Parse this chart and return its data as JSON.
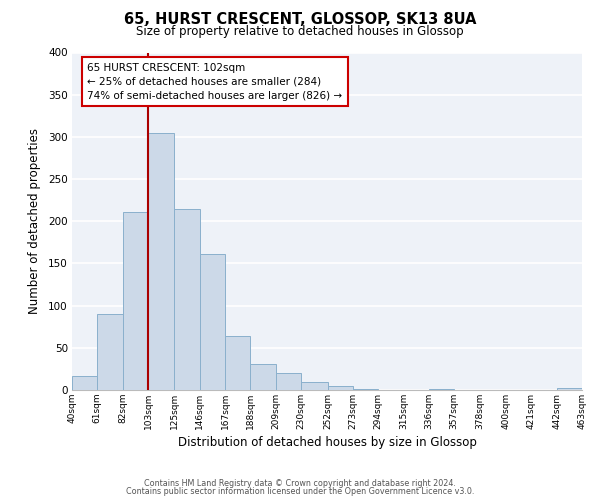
{
  "title": "65, HURST CRESCENT, GLOSSOP, SK13 8UA",
  "subtitle": "Size of property relative to detached houses in Glossop",
  "xlabel": "Distribution of detached houses by size in Glossop",
  "ylabel": "Number of detached properties",
  "bar_color": "#ccd9e8",
  "bar_edge_color": "#8ab0cc",
  "background_color": "#eef2f8",
  "grid_color": "#ffffff",
  "vline_x": 103,
  "vline_color": "#aa0000",
  "bin_edges": [
    40,
    61,
    82,
    103,
    125,
    146,
    167,
    188,
    209,
    230,
    252,
    273,
    294,
    315,
    336,
    357,
    378,
    400,
    421,
    442,
    463
  ],
  "bar_heights": [
    17,
    90,
    211,
    305,
    214,
    161,
    64,
    31,
    20,
    10,
    5,
    1,
    0,
    0,
    1,
    0,
    0,
    0,
    0,
    2
  ],
  "tick_labels": [
    "40sqm",
    "61sqm",
    "82sqm",
    "103sqm",
    "125sqm",
    "146sqm",
    "167sqm",
    "188sqm",
    "209sqm",
    "230sqm",
    "252sqm",
    "273sqm",
    "294sqm",
    "315sqm",
    "336sqm",
    "357sqm",
    "378sqm",
    "400sqm",
    "421sqm",
    "442sqm",
    "463sqm"
  ],
  "ylim": [
    0,
    400
  ],
  "yticks": [
    0,
    50,
    100,
    150,
    200,
    250,
    300,
    350,
    400
  ],
  "annotation_title": "65 HURST CRESCENT: 102sqm",
  "annotation_line1": "← 25% of detached houses are smaller (284)",
  "annotation_line2": "74% of semi-detached houses are larger (826) →",
  "annotation_box_color": "#ffffff",
  "annotation_box_edge": "#cc0000",
  "footer_line1": "Contains HM Land Registry data © Crown copyright and database right 2024.",
  "footer_line2": "Contains public sector information licensed under the Open Government Licence v3.0."
}
